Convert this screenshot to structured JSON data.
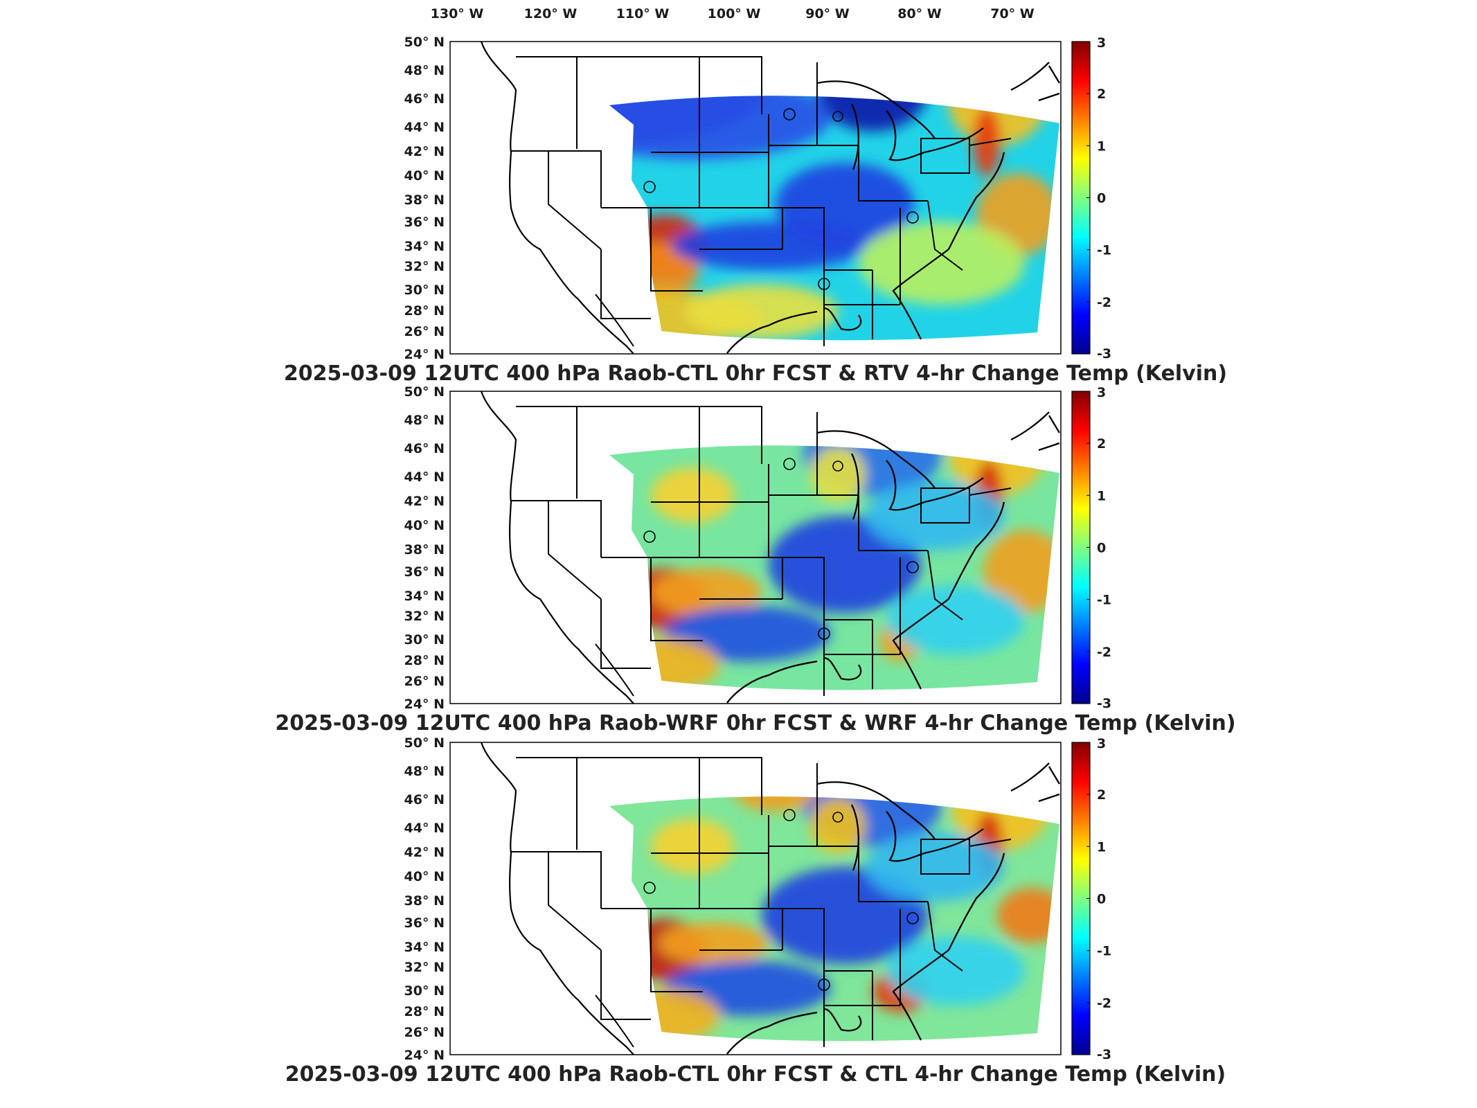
{
  "lon_labels": [
    "130° W",
    "120° W",
    "110° W",
    "100° W",
    "90° W",
    "80° W",
    "70° W"
  ],
  "lat_labels": [
    "50° N",
    "48° N",
    "46° N",
    "44° N",
    "42° N",
    "40° N",
    "38° N",
    "36° N",
    "34° N",
    "32° N",
    "30° N",
    "28° N",
    "26° N",
    "24° N"
  ],
  "colorbar": {
    "ticks": [
      "3",
      "2",
      "1",
      "0",
      "-1",
      "-2",
      "-3"
    ],
    "min": -3,
    "max": 3,
    "colormap": "jet"
  },
  "panels": [
    {
      "title": "2025-03-09 12UTC 400 hPa Raob-CTL 0hr FCST & RTV 4-hr Change Temp (Kelvin)"
    },
    {
      "title": "2025-03-09 12UTC 400 hPa Raob-WRF 0hr FCST & WRF 4-hr Change Temp (Kelvin)"
    },
    {
      "title": "2025-03-09 12UTC 400 hPa Raob-CTL 0hr FCST & CTL 4-hr Change Temp (Kelvin)"
    }
  ],
  "colors": {
    "background": "#ffffff",
    "border": "#000000",
    "text": "#222222"
  }
}
